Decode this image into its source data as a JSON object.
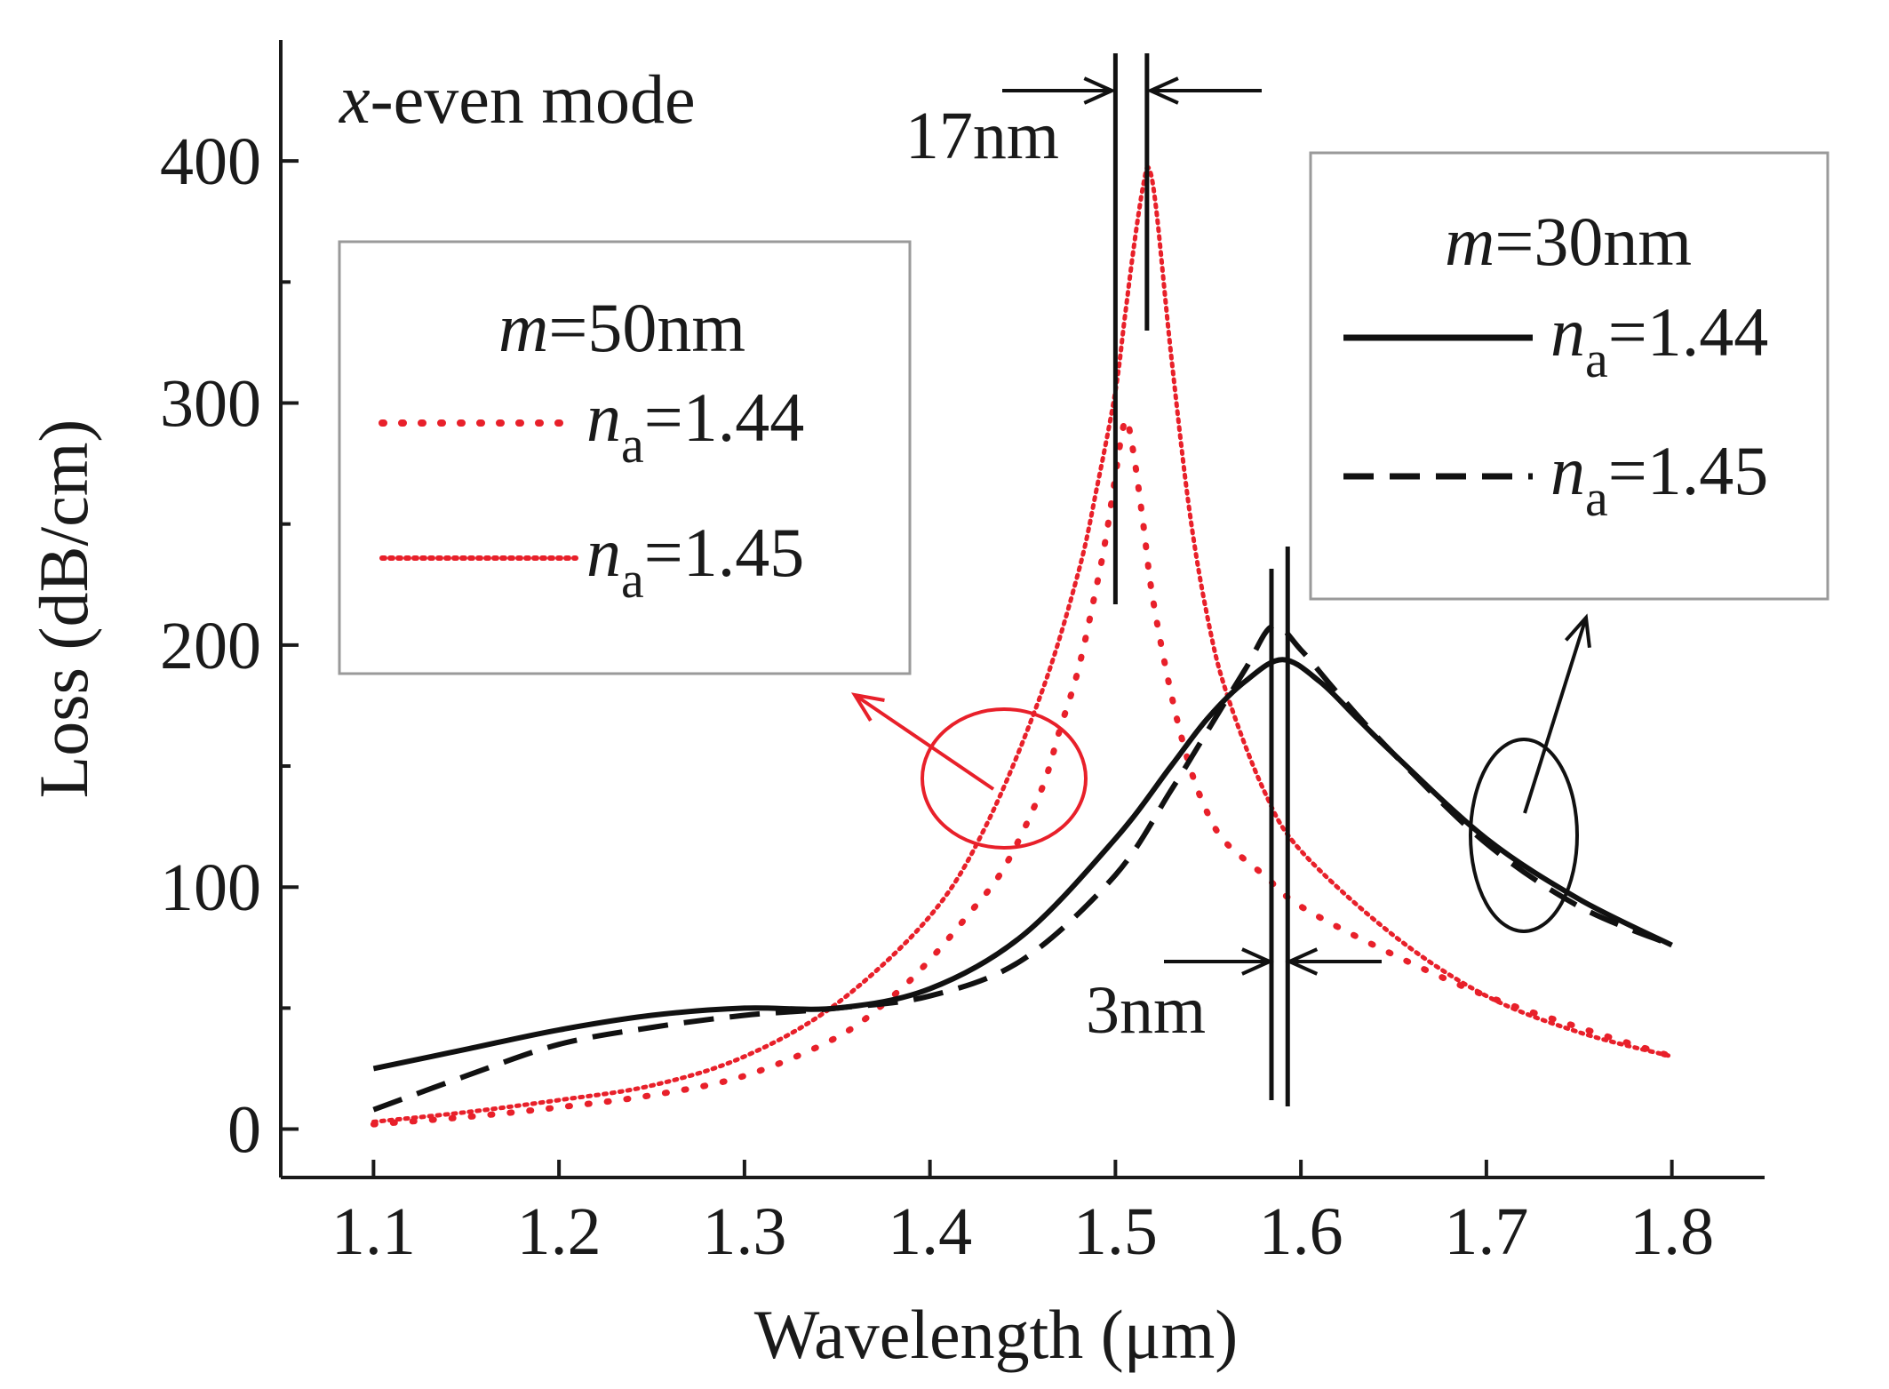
{
  "chart_data": {
    "type": "line",
    "title": "",
    "xlabel": "Wavelength (μm)",
    "ylabel": "Loss (dB/cm)",
    "xlim": [
      1.05,
      1.85
    ],
    "ylim": [
      -20,
      450
    ],
    "xticks": [
      1.1,
      1.2,
      1.3,
      1.4,
      1.5,
      1.6,
      1.7,
      1.8
    ],
    "xtick_labels": [
      "1.1",
      "1.2",
      "1.3",
      "1.4",
      "1.5",
      "1.6",
      "1.7",
      "1.8"
    ],
    "yticks": [
      0,
      100,
      200,
      300,
      400
    ],
    "ytick_labels": [
      "0",
      "100",
      "200",
      "300",
      "400"
    ],
    "mode_label": {
      "italic": "x",
      "rest": "-even mode"
    },
    "colors": {
      "red": "#e8202a",
      "black": "#111111",
      "legend_border": "#9a9a9a"
    },
    "legends": [
      {
        "id": "legend-m50",
        "title_italic": "m",
        "title_rest": "=50nm",
        "entries": [
          {
            "series": "m50-na144",
            "italic": "n",
            "sub": "a",
            "rest": "=1.44"
          },
          {
            "series": "m50-na145",
            "italic": "n",
            "sub": "a",
            "rest": "=1.45"
          }
        ]
      },
      {
        "id": "legend-m30",
        "title_italic": "m",
        "title_rest": "=30nm",
        "entries": [
          {
            "series": "m30-na144",
            "italic": "n",
            "sub": "a",
            "rest": "=1.44"
          },
          {
            "series": "m30-na145",
            "italic": "n",
            "sub": "a",
            "rest": "=1.45"
          }
        ]
      }
    ],
    "annotations": [
      {
        "id": "shift-17nm",
        "text": "17nm",
        "x1": 1.5,
        "x2": 1.517
      },
      {
        "id": "shift-3nm",
        "text": "3nm",
        "x1": 1.587,
        "x2": 1.59
      }
    ],
    "series": [
      {
        "id": "m50-na144",
        "name": "m=50nm, na=1.44",
        "color": "#e8202a",
        "style": "dotted",
        "x": [
          1.1,
          1.15,
          1.2,
          1.25,
          1.3,
          1.35,
          1.38,
          1.4,
          1.42,
          1.44,
          1.46,
          1.47,
          1.48,
          1.49,
          1.495,
          1.5,
          1.503,
          1.506,
          1.51,
          1.515,
          1.52,
          1.53,
          1.54,
          1.55,
          1.56,
          1.58,
          1.6,
          1.65,
          1.7,
          1.75,
          1.8
        ],
        "y": [
          2,
          5,
          9,
          14,
          22,
          38,
          55,
          70,
          88,
          108,
          140,
          165,
          190,
          225,
          245,
          270,
          285,
          293,
          278,
          250,
          220,
          180,
          150,
          130,
          118,
          105,
          92,
          72,
          55,
          42,
          30
        ]
      },
      {
        "id": "m50-na145",
        "name": "m=50nm, na=1.45",
        "color": "#e8202a",
        "style": "densedot",
        "x": [
          1.1,
          1.15,
          1.2,
          1.25,
          1.3,
          1.35,
          1.4,
          1.43,
          1.46,
          1.48,
          1.49,
          1.5,
          1.505,
          1.51,
          1.515,
          1.518,
          1.522,
          1.53,
          1.54,
          1.55,
          1.56,
          1.58,
          1.6,
          1.65,
          1.7,
          1.75,
          1.8
        ],
        "y": [
          3,
          7,
          12,
          18,
          30,
          52,
          88,
          125,
          180,
          230,
          265,
          305,
          335,
          365,
          390,
          397,
          380,
          320,
          255,
          210,
          180,
          140,
          115,
          80,
          55,
          40,
          30
        ]
      },
      {
        "id": "m30-na144",
        "name": "m=30nm, na=1.44",
        "color": "#111111",
        "style": "solid",
        "x": [
          1.1,
          1.15,
          1.2,
          1.25,
          1.3,
          1.35,
          1.4,
          1.45,
          1.5,
          1.53,
          1.55,
          1.57,
          1.59,
          1.61,
          1.63,
          1.65,
          1.7,
          1.75,
          1.8
        ],
        "y": [
          25,
          33,
          41,
          47,
          50,
          50,
          58,
          80,
          120,
          150,
          170,
          185,
          194,
          185,
          170,
          155,
          120,
          95,
          76
        ]
      },
      {
        "id": "m30-na145",
        "name": "m=30nm, na=1.45",
        "color": "#111111",
        "style": "dashed",
        "x": [
          1.1,
          1.15,
          1.2,
          1.25,
          1.3,
          1.35,
          1.4,
          1.45,
          1.5,
          1.53,
          1.55,
          1.57,
          1.585,
          1.6,
          1.62,
          1.65,
          1.7,
          1.75,
          1.8
        ],
        "y": [
          8,
          22,
          35,
          42,
          47,
          50,
          55,
          70,
          105,
          140,
          165,
          190,
          208,
          198,
          180,
          155,
          118,
          92,
          76
        ]
      }
    ]
  }
}
